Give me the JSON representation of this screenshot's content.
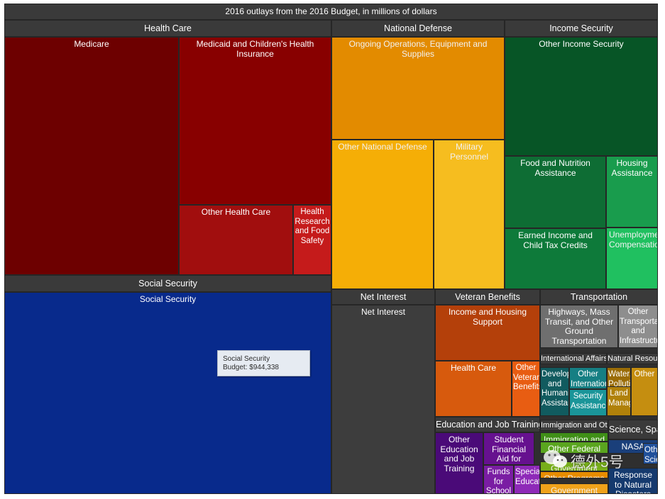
{
  "chart_data": {
    "type": "treemap",
    "title": "2016 outlays from the 2016 Budget, in millions of dollars",
    "unit": "millions of dollars",
    "groups": [
      {
        "name": "Health Care",
        "color": "#7a0000",
        "children": [
          {
            "name": "Medicare",
            "color": "#6d0000"
          },
          {
            "name": "Medicaid and Children's Health Insurance",
            "color": "#880000"
          },
          {
            "name": "Other Health Care",
            "color": "#a10e0e"
          },
          {
            "name": "Health Research and Food Safety",
            "color": "#c51b1b"
          }
        ]
      },
      {
        "name": "National Defense",
        "color": "#eaa100",
        "children": [
          {
            "name": "Ongoing Operations, Equipment and Supplies",
            "color": "#e38b00"
          },
          {
            "name": "Other National Defense",
            "color": "#f5ae06"
          },
          {
            "name": "Military Personnel",
            "color": "#f6bd1f"
          }
        ]
      },
      {
        "name": "Income Security",
        "color": "#0f6b33",
        "children": [
          {
            "name": "Other Income Security",
            "color": "#075526"
          },
          {
            "name": "Food and Nutrition Assistance",
            "color": "#0e6d34"
          },
          {
            "name": "Housing Assistance",
            "color": "#199c4d"
          },
          {
            "name": "Earned Income and Child Tax Credits",
            "color": "#0e7a3a"
          },
          {
            "name": "Unemployment Compensation",
            "color": "#20c060"
          }
        ]
      },
      {
        "name": "Social Security",
        "color": "#082a8c",
        "children": [
          {
            "name": "Social Security",
            "color": "#082a8c",
            "value": 944338
          }
        ]
      },
      {
        "name": "Net Interest",
        "color": "#3d3d3d",
        "children": [
          {
            "name": "Net Interest",
            "color": "#3d3d3d"
          }
        ]
      },
      {
        "name": "Veteran Benefits",
        "color": "#c0440a",
        "children": [
          {
            "name": "Income and Housing Support",
            "color": "#b4400a"
          },
          {
            "name": "Health Care",
            "color": "#d75a0d"
          },
          {
            "name": "Other Veterans Benefits",
            "color": "#e85d12"
          }
        ]
      },
      {
        "name": "Transportation",
        "color": "#7a7a7a",
        "children": [
          {
            "name": "Highways, Mass Transit, and Other Ground Transportation",
            "color": "#6f6f6f"
          },
          {
            "name": "Other Transportation and Infrastructure",
            "color": "#8e8e8e"
          }
        ]
      },
      {
        "name": "International Affairs",
        "color": "#126a6e",
        "children": [
          {
            "name": "Development and Humanitarian Assistance",
            "color": "#115b5f"
          },
          {
            "name": "Other International Affairs",
            "color": "#167f83"
          },
          {
            "name": "Security Assistance",
            "color": "#1a9599"
          }
        ]
      },
      {
        "name": "Natural Resources and Environment",
        "color": "#a8790c",
        "children": [
          {
            "name": "Water, Pollution, and Environment",
            "color": "#9a6c06"
          },
          {
            "name": "Land Management",
            "color": "#b0810a"
          },
          {
            "name": "Other",
            "color": "#c58e10"
          }
        ]
      },
      {
        "name": "Education and Job Training",
        "color": "#5a0e8c",
        "children": [
          {
            "name": "Other Education and Job Training",
            "color": "#4a0a78"
          },
          {
            "name": "Student Financial Aid for College",
            "color": "#66118f"
          },
          {
            "name": "Funds for School",
            "color": "#7a1da3"
          },
          {
            "name": "Special Education",
            "color": "#8e2ab8"
          }
        ]
      },
      {
        "name": "Immigration and Other Federal",
        "color": "#3f8f17",
        "children": [
          {
            "name": "Immigration and Law Enforcement",
            "color": "#3f8f17"
          },
          {
            "name": "Other Federal",
            "color": "#5aa51f"
          },
          {
            "name": "Government",
            "color": "#77ae1a"
          },
          {
            "name": "Other Programs",
            "color": "#e78c00"
          },
          {
            "name": "Government",
            "color": "#f0a21a"
          }
        ]
      },
      {
        "name": "Science, Space, and Technology",
        "color": "#1a3f7a",
        "children": [
          {
            "name": "NASA",
            "color": "#1a3f7a"
          },
          {
            "name": "Other Science Research",
            "color": "#20509b"
          },
          {
            "name": "Response to Natural Disasters",
            "color": "#153a6e"
          }
        ]
      }
    ]
  },
  "tooltip": {
    "line1": "Social Security",
    "line2": "Budget: $944,338"
  },
  "watermark": {
    "text": "德外5号",
    "icon": "wechat-icon"
  }
}
